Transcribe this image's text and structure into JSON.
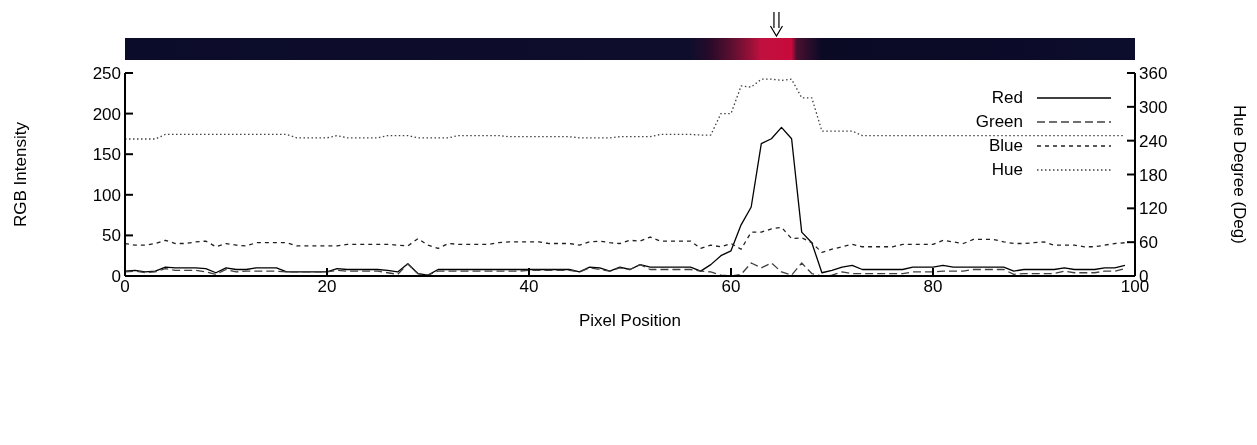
{
  "chart_data": {
    "type": "line",
    "xlabel": "Pixel Position",
    "ylabel": "RGB Intensity",
    "y2label": "Hue Degree (Deg)",
    "x": [
      0,
      1,
      2,
      3,
      4,
      5,
      6,
      7,
      8,
      9,
      10,
      11,
      12,
      13,
      14,
      15,
      16,
      17,
      18,
      19,
      20,
      21,
      22,
      23,
      24,
      25,
      26,
      27,
      28,
      29,
      30,
      31,
      32,
      33,
      34,
      35,
      36,
      37,
      38,
      39,
      40,
      41,
      42,
      43,
      44,
      45,
      46,
      47,
      48,
      49,
      50,
      51,
      52,
      53,
      54,
      55,
      56,
      57,
      58,
      59,
      60,
      61,
      62,
      63,
      64,
      65,
      66,
      67,
      68,
      69,
      70,
      71,
      72,
      73,
      74,
      75,
      76,
      77,
      78,
      79,
      80,
      81,
      82,
      83,
      84,
      85,
      86,
      87,
      88,
      89,
      90,
      91,
      92,
      93,
      94,
      95,
      96,
      97,
      98,
      99
    ],
    "xlim": [
      0,
      100
    ],
    "xticks": [
      0,
      20,
      40,
      60,
      80,
      100
    ],
    "ylim": [
      0,
      250
    ],
    "yticks": [
      0,
      50,
      100,
      150,
      200,
      250
    ],
    "y2lim": [
      0,
      360
    ],
    "y2ticks": [
      0,
      60,
      120,
      180,
      240,
      300,
      360
    ],
    "legend": "top right",
    "grid": false,
    "marker": "none",
    "series": [
      {
        "name": "Red",
        "color": "#000000",
        "line_style": "solid",
        "values": [
          6,
          7,
          5,
          6,
          11,
          10,
          10,
          10,
          9,
          4,
          10,
          8,
          8,
          10,
          10,
          10,
          5,
          5,
          5,
          5,
          5,
          9,
          8,
          8,
          8,
          8,
          7,
          5,
          15,
          3,
          1,
          8,
          8,
          8,
          8,
          8,
          8,
          8,
          8,
          8,
          8,
          8,
          8,
          8,
          8,
          5,
          11,
          10,
          6,
          11,
          8,
          14,
          11,
          11,
          11,
          11,
          11,
          6,
          14,
          25,
          31,
          63,
          85,
          163,
          169,
          183,
          169,
          54,
          41,
          4,
          7,
          11,
          13,
          8,
          8,
          8,
          8,
          8,
          11,
          11,
          11,
          13,
          11,
          11,
          11,
          11,
          11,
          11,
          6,
          8,
          8,
          8,
          8,
          10,
          8,
          8,
          8,
          10,
          10,
          13
        ]
      },
      {
        "name": "Green",
        "color": "#404040",
        "line_style": "dashed",
        "values": [
          5,
          6,
          4,
          5,
          9,
          7,
          7,
          7,
          5,
          2,
          8,
          5,
          6,
          6,
          6,
          6,
          5,
          5,
          5,
          5,
          5,
          7,
          6,
          6,
          6,
          6,
          4,
          2,
          15,
          3,
          1,
          6,
          6,
          6,
          6,
          6,
          6,
          6,
          6,
          6,
          7,
          7,
          7,
          7,
          7,
          5,
          10,
          8,
          6,
          10,
          8,
          14,
          8,
          8,
          8,
          8,
          8,
          6,
          5,
          1,
          0,
          2,
          16,
          10,
          16,
          5,
          1,
          16,
          3,
          0,
          1,
          5,
          3,
          3,
          3,
          3,
          3,
          3,
          5,
          5,
          5,
          6,
          6,
          6,
          8,
          8,
          8,
          8,
          2,
          3,
          3,
          3,
          3,
          6,
          4,
          4,
          4,
          6,
          6,
          9
        ]
      },
      {
        "name": "Blue",
        "color": "#202020",
        "line_style": "dashed",
        "values": [
          40,
          38,
          38,
          40,
          44,
          40,
          40,
          42,
          43,
          36,
          40,
          38,
          37,
          41,
          41,
          41,
          41,
          37,
          37,
          37,
          37,
          37,
          39,
          39,
          39,
          39,
          39,
          38,
          37,
          46,
          38,
          34,
          40,
          39,
          39,
          39,
          39,
          41,
          42,
          42,
          42,
          42,
          40,
          40,
          40,
          38,
          42,
          43,
          41,
          40,
          44,
          43,
          48,
          43,
          43,
          43,
          43,
          34,
          38,
          36,
          40,
          33,
          54,
          54,
          58,
          60,
          46,
          47,
          41,
          29,
          33,
          36,
          39,
          36,
          36,
          36,
          36,
          39,
          39,
          39,
          39,
          44,
          42,
          40,
          45,
          45,
          45,
          42,
          40,
          40,
          41,
          42,
          38,
          38,
          38,
          36,
          36,
          38,
          40,
          41
        ]
      },
      {
        "name": "Hue",
        "color": "#404040",
        "line_style": "dotted",
        "axis": "y2",
        "values": [
          243,
          243,
          243,
          243,
          251,
          251,
          251,
          251,
          251,
          251,
          251,
          251,
          251,
          251,
          251,
          251,
          251,
          245,
          245,
          245,
          245,
          249,
          245,
          245,
          245,
          245,
          249,
          249,
          249,
          245,
          245,
          245,
          245,
          249,
          249,
          249,
          249,
          249,
          247,
          247,
          247,
          247,
          247,
          247,
          247,
          245,
          245,
          245,
          245,
          247,
          247,
          247,
          247,
          251,
          251,
          251,
          251,
          250,
          250,
          288,
          288,
          337,
          335,
          349,
          349,
          347,
          349,
          316,
          316,
          257,
          257,
          257,
          257,
          249,
          249,
          249,
          249,
          249,
          249,
          249,
          249,
          249,
          249,
          249,
          249,
          249,
          249,
          249,
          249,
          249,
          249,
          249,
          249,
          249,
          249,
          249,
          249,
          249,
          249,
          249
        ]
      }
    ]
  }
}
